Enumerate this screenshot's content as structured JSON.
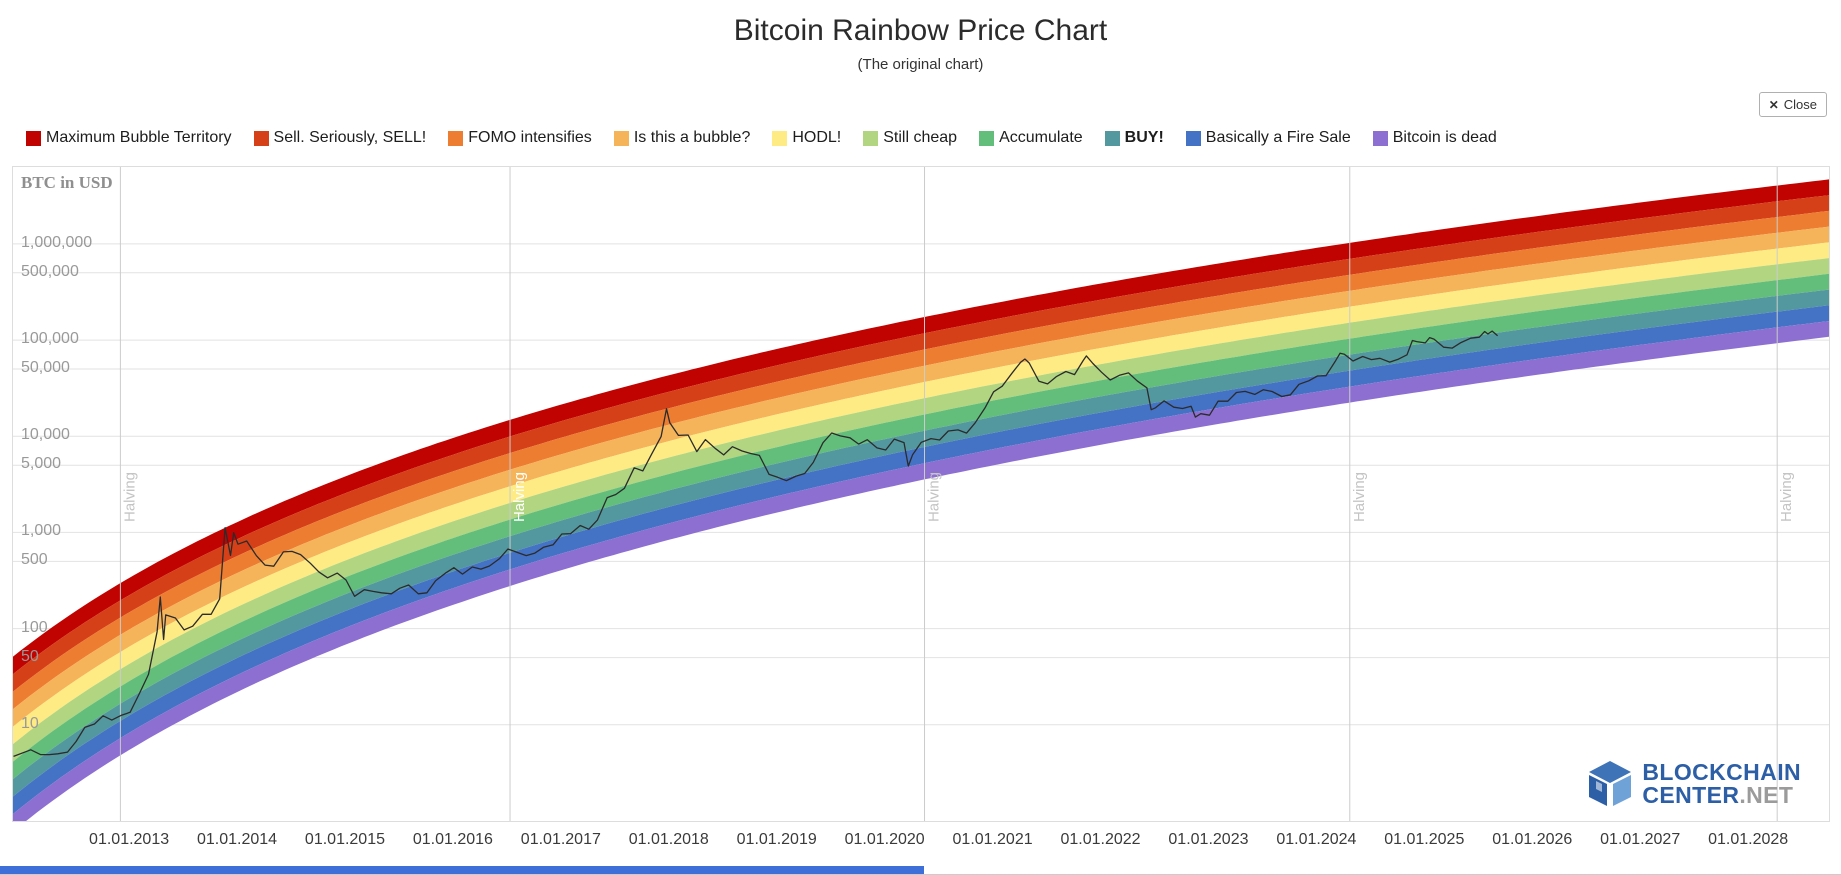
{
  "header": {
    "title": "Bitcoin Rainbow Price Chart",
    "subtitle": "(The original chart)",
    "close_label": "Close",
    "close_icon": "✕"
  },
  "logo": {
    "line1": "BLOCKCHAIN",
    "line2_blue": "CENTER",
    "line2_gray": ".NET"
  },
  "misc": {
    "bottom_bar_color": "#3e6fd8"
  },
  "chart_data": {
    "type": "area",
    "title": "Bitcoin Rainbow Price Chart",
    "subtitle": "(The original chart)",
    "y_axis_title": "BTC in USD",
    "x_scale": "time-linear",
    "y_scale": "log10",
    "grid": "horizontal-only",
    "legend_position": "top",
    "x_range": [
      2011.915,
      2028.74
    ],
    "y_range": [
      1,
      6300000
    ],
    "y_ticks": [
      {
        "v": 1000000,
        "label": "1,000,000"
      },
      {
        "v": 500000,
        "label": "500,000"
      },
      {
        "v": 100000,
        "label": "100,000"
      },
      {
        "v": 50000,
        "label": "50,000"
      },
      {
        "v": 10000,
        "label": "10,000"
      },
      {
        "v": 5000,
        "label": "5,000"
      },
      {
        "v": 1000,
        "label": "1,000"
      },
      {
        "v": 500,
        "label": "500"
      },
      {
        "v": 100,
        "label": "100"
      },
      {
        "v": 50,
        "label": "50"
      },
      {
        "v": 10,
        "label": "10"
      }
    ],
    "x_ticks": [
      {
        "t": 2013,
        "label": "01.01.2013"
      },
      {
        "t": 2014,
        "label": "01.01.2014"
      },
      {
        "t": 2015,
        "label": "01.01.2015"
      },
      {
        "t": 2016,
        "label": "01.01.2016"
      },
      {
        "t": 2017,
        "label": "01.01.2017"
      },
      {
        "t": 2018,
        "label": "01.01.2018"
      },
      {
        "t": 2019,
        "label": "01.01.2019"
      },
      {
        "t": 2020,
        "label": "01.01.2020"
      },
      {
        "t": 2021,
        "label": "01.01.2021"
      },
      {
        "t": 2022,
        "label": "01.01.2022"
      },
      {
        "t": 2023,
        "label": "01.01.2023"
      },
      {
        "t": 2024,
        "label": "01.01.2024"
      },
      {
        "t": 2025,
        "label": "01.01.2025"
      },
      {
        "t": 2026,
        "label": "01.01.2026"
      },
      {
        "t": 2027,
        "label": "01.01.2027"
      },
      {
        "t": 2028,
        "label": "01.01.2028"
      }
    ],
    "halvings": [
      {
        "t": 2012.91,
        "label": "Halving",
        "label_color": "#c4c4c4"
      },
      {
        "t": 2016.52,
        "label": "Halving",
        "label_color": "#ffffff"
      },
      {
        "t": 2020.36,
        "label": "Halving",
        "label_color": "#c4c4c4"
      },
      {
        "t": 2024.3,
        "label": "Halving",
        "label_color": "#c4c4c4"
      },
      {
        "t": 2028.26,
        "label": "Halving",
        "label_color": "#c4c4c4"
      }
    ],
    "band_model": {
      "note": "log10(USD) = slope * ln(days since epoch) + intercept; 10 equal log-width rainbow bands fill the space between the top and bottom curves",
      "epoch_year": 2009.022,
      "top": {
        "slope": 2.585,
        "intercept": -16.29
      },
      "bottom": {
        "slope": 2.68,
        "intercept": -18.77
      }
    },
    "bands": [
      {
        "label": "Maximum Bubble Territory",
        "color": "#c00200"
      },
      {
        "label": "Sell. Seriously, SELL!",
        "color": "#d64018"
      },
      {
        "label": "FOMO intensifies",
        "color": "#ed7d31"
      },
      {
        "label": "Is this a bubble?",
        "color": "#f6b45a"
      },
      {
        "label": "HODL!",
        "color": "#feeb84"
      },
      {
        "label": "Still cheap",
        "color": "#b1d580"
      },
      {
        "label": "Accumulate",
        "color": "#63be7b"
      },
      {
        "label": "BUY!",
        "color": "#54989f",
        "bold": true
      },
      {
        "label": "Basically a Fire Sale",
        "color": "#4472c4"
      },
      {
        "label": "Bitcoin is dead",
        "color": "#8d6fd1"
      }
    ],
    "price_series": {
      "name": "BTC/USD price",
      "color": "#2b2b2b",
      "points": [
        [
          2011.92,
          4.7
        ],
        [
          2012.08,
          5.5
        ],
        [
          2012.17,
          4.9
        ],
        [
          2012.25,
          4.9
        ],
        [
          2012.33,
          5.0
        ],
        [
          2012.42,
          5.2
        ],
        [
          2012.5,
          6.7
        ],
        [
          2012.58,
          9.4
        ],
        [
          2012.67,
          10.2
        ],
        [
          2012.75,
          12.4
        ],
        [
          2012.83,
          11.2
        ],
        [
          2012.92,
          12.6
        ],
        [
          2013.0,
          13.5
        ],
        [
          2013.08,
          20.4
        ],
        [
          2013.17,
          33.4
        ],
        [
          2013.25,
          93
        ],
        [
          2013.28,
          213
        ],
        [
          2013.31,
          77
        ],
        [
          2013.33,
          139
        ],
        [
          2013.42,
          129
        ],
        [
          2013.5,
          97
        ],
        [
          2013.58,
          106
        ],
        [
          2013.67,
          141
        ],
        [
          2013.75,
          141
        ],
        [
          2013.83,
          204
        ],
        [
          2013.88,
          1120
        ],
        [
          2013.93,
          576
        ],
        [
          2013.96,
          995
        ],
        [
          2014.0,
          754
        ],
        [
          2014.08,
          815
        ],
        [
          2014.17,
          573
        ],
        [
          2014.25,
          458
        ],
        [
          2014.33,
          446
        ],
        [
          2014.42,
          627
        ],
        [
          2014.5,
          635
        ],
        [
          2014.58,
          589
        ],
        [
          2014.67,
          478
        ],
        [
          2014.75,
          387
        ],
        [
          2014.83,
          338
        ],
        [
          2014.92,
          378
        ],
        [
          2015.0,
          320
        ],
        [
          2015.08,
          217
        ],
        [
          2015.17,
          254
        ],
        [
          2015.25,
          244
        ],
        [
          2015.33,
          236
        ],
        [
          2015.42,
          230
        ],
        [
          2015.5,
          263
        ],
        [
          2015.58,
          284
        ],
        [
          2015.67,
          230
        ],
        [
          2015.75,
          236
        ],
        [
          2015.83,
          314
        ],
        [
          2015.92,
          377
        ],
        [
          2016.0,
          430
        ],
        [
          2016.08,
          369
        ],
        [
          2016.17,
          437
        ],
        [
          2016.25,
          416
        ],
        [
          2016.33,
          448
        ],
        [
          2016.42,
          531
        ],
        [
          2016.5,
          673
        ],
        [
          2016.58,
          624
        ],
        [
          2016.67,
          575
        ],
        [
          2016.75,
          610
        ],
        [
          2016.83,
          700
        ],
        [
          2016.92,
          745
        ],
        [
          2017.0,
          964
        ],
        [
          2017.08,
          970
        ],
        [
          2017.17,
          1180
        ],
        [
          2017.25,
          1080
        ],
        [
          2017.33,
          1350
        ],
        [
          2017.42,
          2300
        ],
        [
          2017.5,
          2480
        ],
        [
          2017.58,
          2875
        ],
        [
          2017.67,
          4703
        ],
        [
          2017.75,
          4360
        ],
        [
          2017.83,
          6450
        ],
        [
          2017.92,
          9916
        ],
        [
          2017.97,
          19300
        ],
        [
          2018.0,
          13850
        ],
        [
          2018.08,
          10200
        ],
        [
          2018.17,
          10300
        ],
        [
          2018.25,
          6926
        ],
        [
          2018.33,
          9240
        ],
        [
          2018.42,
          7494
        ],
        [
          2018.5,
          6404
        ],
        [
          2018.58,
          7780
        ],
        [
          2018.67,
          7033
        ],
        [
          2018.75,
          6625
        ],
        [
          2018.83,
          6317
        ],
        [
          2018.92,
          4017
        ],
        [
          2019.0,
          3747
        ],
        [
          2019.08,
          3457
        ],
        [
          2019.17,
          3854
        ],
        [
          2019.25,
          4105
        ],
        [
          2019.33,
          5350
        ],
        [
          2019.42,
          8574
        ],
        [
          2019.5,
          10817
        ],
        [
          2019.58,
          10085
        ],
        [
          2019.67,
          9630
        ],
        [
          2019.75,
          8293
        ],
        [
          2019.83,
          9199
        ],
        [
          2019.92,
          7569
        ],
        [
          2020.0,
          7193
        ],
        [
          2020.08,
          9350
        ],
        [
          2020.17,
          8599
        ],
        [
          2020.21,
          4900
        ],
        [
          2020.25,
          6438
        ],
        [
          2020.33,
          8658
        ],
        [
          2020.42,
          9461
        ],
        [
          2020.5,
          9137
        ],
        [
          2020.58,
          11351
        ],
        [
          2020.67,
          11655
        ],
        [
          2020.75,
          10776
        ],
        [
          2020.83,
          13797
        ],
        [
          2020.92,
          19698
        ],
        [
          2021.0,
          28994
        ],
        [
          2021.08,
          33114
        ],
        [
          2021.17,
          45137
        ],
        [
          2021.25,
          58763
        ],
        [
          2021.29,
          63500
        ],
        [
          2021.33,
          57750
        ],
        [
          2021.42,
          37332
        ],
        [
          2021.5,
          35040
        ],
        [
          2021.58,
          41626
        ],
        [
          2021.67,
          47166
        ],
        [
          2021.75,
          43790
        ],
        [
          2021.83,
          61318
        ],
        [
          2021.86,
          68500
        ],
        [
          2021.92,
          57005
        ],
        [
          2022.0,
          46306
        ],
        [
          2022.08,
          38483
        ],
        [
          2022.17,
          43193
        ],
        [
          2022.25,
          45538
        ],
        [
          2022.33,
          37714
        ],
        [
          2022.42,
          31792
        ],
        [
          2022.46,
          18900
        ],
        [
          2022.5,
          19784
        ],
        [
          2022.58,
          23336
        ],
        [
          2022.67,
          20049
        ],
        [
          2022.75,
          19431
        ],
        [
          2022.83,
          20495
        ],
        [
          2022.87,
          15800
        ],
        [
          2022.92,
          17168
        ],
        [
          2023.0,
          16547
        ],
        [
          2023.08,
          23139
        ],
        [
          2023.17,
          23147
        ],
        [
          2023.25,
          28478
        ],
        [
          2023.33,
          29268
        ],
        [
          2023.42,
          27219
        ],
        [
          2023.5,
          30477
        ],
        [
          2023.58,
          29230
        ],
        [
          2023.67,
          25931
        ],
        [
          2023.75,
          26967
        ],
        [
          2023.83,
          34667
        ],
        [
          2023.92,
          37718
        ],
        [
          2024.0,
          42265
        ],
        [
          2024.08,
          42580
        ],
        [
          2024.17,
          61198
        ],
        [
          2024.21,
          73100
        ],
        [
          2024.25,
          71333
        ],
        [
          2024.33,
          60636
        ],
        [
          2024.42,
          67491
        ],
        [
          2024.5,
          62678
        ],
        [
          2024.58,
          64619
        ],
        [
          2024.67,
          58969
        ],
        [
          2024.75,
          63329
        ],
        [
          2024.83,
          70215
        ],
        [
          2024.88,
          99000
        ],
        [
          2024.92,
          96449
        ],
        [
          2025.0,
          93429
        ],
        [
          2025.04,
          106100
        ],
        [
          2025.08,
          102405
        ],
        [
          2025.17,
          84349
        ],
        [
          2025.25,
          82548
        ],
        [
          2025.33,
          94207
        ],
        [
          2025.42,
          104598
        ],
        [
          2025.5,
          107135
        ],
        [
          2025.55,
          122800
        ],
        [
          2025.58,
          115758
        ],
        [
          2025.62,
          124000
        ],
        [
          2025.67,
          111000
        ]
      ]
    }
  }
}
